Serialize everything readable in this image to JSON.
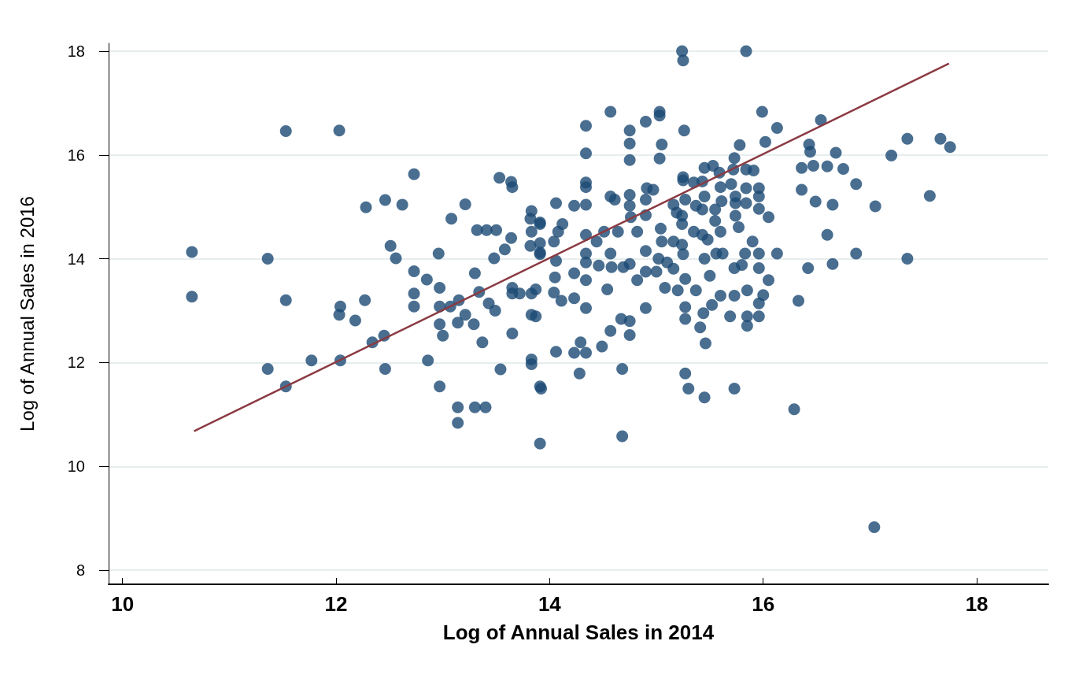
{
  "chart_data": {
    "type": "scatter",
    "xlabel": "Log of Annual Sales in 2014",
    "ylabel": "Log of Annual Sales in 2016",
    "xlim": [
      9.87,
      18.67
    ],
    "ylim": [
      7.73,
      18.15
    ],
    "xticks": [
      10,
      12,
      14,
      16,
      18
    ],
    "yticks": [
      8,
      10,
      12,
      14,
      16,
      18
    ],
    "grid": "y",
    "marker": "circle",
    "legend": false,
    "series": [
      {
        "type": "scatter",
        "color": "#1c4a74",
        "x": [
          10.65,
          10.65,
          11.36,
          11.53,
          11.53,
          11.36,
          11.53,
          11.77,
          12.03,
          12.04,
          12.03,
          12.04,
          12.18,
          12.27,
          12.28,
          12.34,
          12.45,
          12.46,
          12.51,
          12.56,
          12.46,
          12.62,
          12.73,
          12.73,
          12.73,
          12.73,
          12.85,
          12.86,
          12.96,
          12.97,
          12.97,
          12.97,
          13.0,
          12.97,
          13.08,
          13.07,
          13.15,
          13.14,
          13.14,
          13.14,
          13.21,
          13.21,
          13.29,
          13.3,
          13.32,
          13.34,
          13.37,
          13.3,
          13.4,
          13.41,
          13.5,
          13.43,
          13.48,
          13.49,
          13.53,
          13.54,
          13.58,
          13.64,
          13.65,
          13.64,
          13.65,
          13.65,
          13.65,
          13.72,
          13.82,
          13.83,
          13.83,
          13.83,
          13.82,
          13.83,
          13.83,
          13.91,
          13.91,
          13.91,
          13.91,
          13.83,
          15.24,
          15.25,
          15.84,
          14.57,
          14.34,
          15.03,
          15.03,
          14.9,
          14.75,
          15.26,
          15.99,
          16.54,
          16.13,
          16.02,
          14.75,
          15.05,
          14.34,
          14.75,
          15.03,
          16.43,
          16.44,
          16.68,
          17.35,
          17.66,
          17.75,
          17.2,
          16.36,
          16.47,
          16.6,
          16.75,
          16.87,
          16.36,
          16.49,
          16.65,
          17.05,
          17.56,
          16.6,
          16.87,
          17.35,
          16.65,
          16.42,
          16.33,
          16.29,
          16.13,
          16.05,
          16.05,
          16.0,
          15.96,
          15.96,
          15.85,
          15.85,
          15.69,
          15.52,
          15.6,
          15.73,
          15.85,
          15.44,
          15.41,
          15.46,
          15.27,
          15.27,
          15.37,
          15.2,
          15.08,
          15.27,
          15.5,
          15.45,
          15.56,
          15.62,
          15.83,
          15.96,
          15.96,
          15.73,
          15.8,
          15.9,
          15.77,
          15.6,
          15.43,
          15.48,
          15.35,
          15.24,
          15.25,
          15.24,
          15.24,
          15.19,
          15.16,
          15.27,
          15.25,
          15.25,
          15.35,
          15.43,
          15.45,
          15.53,
          15.59,
          15.72,
          15.84,
          15.91,
          15.73,
          15.78,
          15.7,
          15.6,
          15.84,
          15.96,
          15.96,
          15.96,
          15.84,
          15.74,
          15.74,
          15.61,
          15.55,
          15.55,
          15.74,
          15.43,
          15.45,
          15.37,
          14.91,
          14.97,
          14.9,
          14.9,
          14.75,
          14.75,
          14.76,
          14.57,
          14.61,
          14.34,
          14.34,
          14.34,
          14.23,
          14.06,
          14.12,
          14.08,
          14.04,
          13.91,
          13.91,
          13.91,
          14.34,
          14.44,
          14.51,
          14.64,
          14.82,
          15.04,
          15.05,
          15.16,
          14.9,
          14.57,
          14.34,
          14.34,
          14.46,
          14.58,
          14.69,
          14.75,
          15.02,
          15.1,
          15.16,
          15.0,
          14.9,
          14.82,
          14.06,
          14.23,
          14.34,
          14.05,
          13.87,
          14.04,
          14.11,
          14.23,
          14.34,
          14.54,
          14.9,
          13.87,
          14.67,
          14.75,
          14.57,
          14.75,
          14.49,
          14.29,
          14.06,
          14.23,
          14.34,
          14.28,
          14.68,
          13.92,
          15.27,
          15.3,
          15.45,
          15.73,
          14.68,
          17.04
        ],
        "values": [
          14.13,
          13.27,
          14.0,
          16.46,
          13.2,
          11.88,
          11.54,
          12.04,
          16.47,
          13.08,
          12.92,
          12.04,
          12.81,
          13.2,
          14.99,
          12.39,
          12.52,
          15.13,
          14.25,
          14.01,
          11.88,
          15.04,
          15.63,
          13.76,
          13.33,
          13.08,
          13.6,
          12.04,
          14.1,
          13.44,
          13.08,
          12.74,
          12.52,
          11.54,
          14.77,
          13.08,
          13.2,
          12.77,
          11.14,
          10.84,
          15.05,
          12.92,
          12.74,
          13.72,
          14.55,
          13.36,
          12.39,
          11.14,
          11.14,
          14.55,
          14.55,
          13.14,
          14.01,
          13.0,
          15.56,
          11.87,
          14.18,
          15.48,
          15.38,
          14.4,
          12.56,
          13.44,
          13.33,
          13.33,
          14.77,
          14.52,
          13.33,
          12.92,
          14.25,
          12.06,
          11.97,
          14.7,
          14.09,
          11.54,
          10.44,
          14.92,
          18.0,
          17.82,
          18.0,
          16.83,
          16.56,
          16.83,
          16.76,
          16.64,
          16.47,
          16.47,
          16.83,
          16.67,
          16.52,
          16.25,
          16.22,
          16.2,
          16.03,
          15.9,
          15.93,
          16.2,
          16.06,
          16.04,
          16.31,
          16.31,
          16.15,
          15.99,
          15.75,
          15.79,
          15.78,
          15.73,
          15.44,
          15.33,
          15.1,
          15.04,
          15.01,
          15.21,
          14.46,
          14.1,
          14.0,
          13.9,
          13.82,
          13.19,
          11.1,
          14.1,
          14.8,
          13.59,
          13.3,
          13.14,
          12.89,
          12.89,
          12.71,
          12.89,
          13.11,
          13.29,
          13.29,
          13.39,
          12.95,
          12.68,
          12.37,
          13.07,
          12.84,
          13.39,
          13.39,
          13.44,
          13.61,
          13.67,
          14.0,
          14.1,
          14.1,
          14.1,
          14.1,
          13.82,
          13.82,
          13.88,
          14.33,
          14.61,
          14.52,
          14.46,
          14.37,
          14.52,
          14.27,
          14.09,
          14.67,
          14.83,
          14.89,
          15.04,
          15.14,
          15.57,
          15.51,
          15.47,
          15.49,
          15.75,
          15.79,
          15.66,
          15.72,
          15.72,
          15.7,
          15.94,
          16.19,
          15.44,
          15.38,
          15.36,
          15.36,
          15.2,
          14.96,
          15.07,
          15.2,
          15.07,
          15.11,
          14.95,
          14.73,
          14.83,
          14.95,
          15.2,
          15.02,
          15.36,
          15.33,
          15.14,
          14.84,
          15.23,
          15.02,
          14.8,
          15.2,
          15.14,
          15.47,
          15.38,
          15.04,
          15.02,
          15.07,
          14.67,
          14.52,
          14.33,
          14.67,
          14.3,
          14.12,
          14.46,
          14.33,
          14.52,
          14.52,
          14.52,
          14.58,
          14.33,
          14.33,
          14.15,
          14.1,
          14.1,
          13.93,
          13.87,
          13.84,
          13.84,
          13.9,
          14.0,
          13.93,
          13.81,
          13.75,
          13.75,
          13.59,
          13.96,
          13.72,
          13.59,
          13.64,
          13.41,
          13.35,
          13.19,
          13.24,
          13.05,
          13.41,
          13.05,
          12.89,
          12.84,
          12.8,
          12.61,
          12.53,
          12.31,
          12.39,
          12.21,
          12.19,
          12.19,
          11.79,
          11.88,
          11.5,
          11.79,
          11.5,
          11.33,
          11.5,
          10.58,
          8.83
        ]
      },
      {
        "type": "line",
        "color": "#8b3a42",
        "marker": "none",
        "line_style": "solid",
        "x": [
          10.67,
          17.74
        ],
        "values": [
          10.68,
          17.76
        ]
      }
    ]
  }
}
